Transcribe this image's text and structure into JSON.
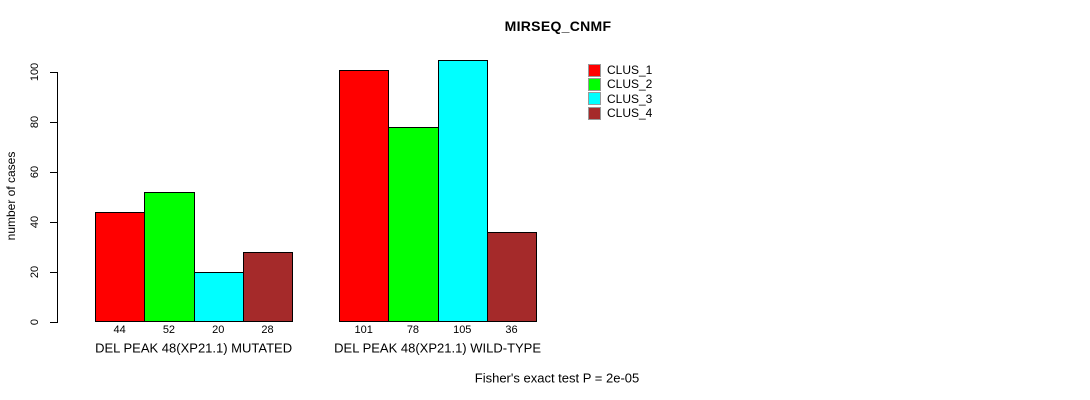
{
  "chart_data": {
    "type": "bar",
    "title": "MIRSEQ_CNMF",
    "ylabel": "number of cases",
    "xlabel": "",
    "ylim": [
      0,
      100
    ],
    "yticks": [
      0,
      20,
      40,
      60,
      80,
      100
    ],
    "grid": false,
    "legend_position": "top-right",
    "categories": [
      "DEL PEAK 48(XP21.1) MUTATED",
      "DEL PEAK 48(XP21.1) WILD-TYPE"
    ],
    "series": [
      {
        "name": "CLUS_1",
        "color": "#FF0000",
        "values": [
          44,
          101
        ]
      },
      {
        "name": "CLUS_2",
        "color": "#00FF00",
        "values": [
          52,
          78
        ]
      },
      {
        "name": "CLUS_3",
        "color": "#00FFFF",
        "values": [
          20,
          105
        ]
      },
      {
        "name": "CLUS_4",
        "color": "#A52A2A",
        "values": [
          28,
          36
        ]
      }
    ],
    "bar_value_labels": [
      [
        44,
        52,
        20,
        28
      ],
      [
        101,
        78,
        105,
        36
      ]
    ],
    "annotation": "Fisher's exact test P = 2e-05"
  },
  "colors": {
    "background": "#FFFFFF",
    "axis": "#000000",
    "text": "#000000"
  }
}
